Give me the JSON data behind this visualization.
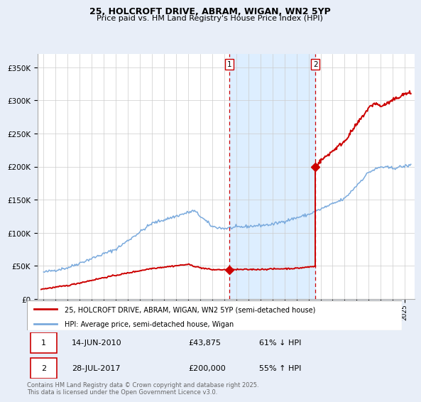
{
  "title1": "25, HOLCROFT DRIVE, ABRAM, WIGAN, WN2 5YP",
  "title2": "Price paid vs. HM Land Registry's House Price Index (HPI)",
  "background_color": "#e8eef8",
  "plot_bg": "#ffffff",
  "ylabel_ticks": [
    "£0",
    "£50K",
    "£100K",
    "£150K",
    "£200K",
    "£250K",
    "£300K",
    "£350K"
  ],
  "ytick_vals": [
    0,
    50000,
    100000,
    150000,
    200000,
    250000,
    300000,
    350000
  ],
  "ylim": [
    0,
    370000
  ],
  "xlim_start": 1994.5,
  "xlim_end": 2025.8,
  "shade_start": 2010.44,
  "shade_end": 2017.57,
  "dashed_line1_x": 2010.44,
  "dashed_line2_x": 2017.57,
  "sale1_x": 2010.44,
  "sale1_y": 43875,
  "sale2_x": 2017.57,
  "sale2_y": 200000,
  "legend_line1": "25, HOLCROFT DRIVE, ABRAM, WIGAN, WN2 5YP (semi-detached house)",
  "legend_line2": "HPI: Average price, semi-detached house, Wigan",
  "table_row1": [
    "1",
    "14-JUN-2010",
    "£43,875",
    "61% ↓ HPI"
  ],
  "table_row2": [
    "2",
    "28-JUL-2017",
    "£200,000",
    "55% ↑ HPI"
  ],
  "footer": "Contains HM Land Registry data © Crown copyright and database right 2025.\nThis data is licensed under the Open Government Licence v3.0.",
  "red_color": "#cc0000",
  "blue_color": "#7aaadd",
  "shade_color": "#ddeeff",
  "grid_color": "#cccccc"
}
